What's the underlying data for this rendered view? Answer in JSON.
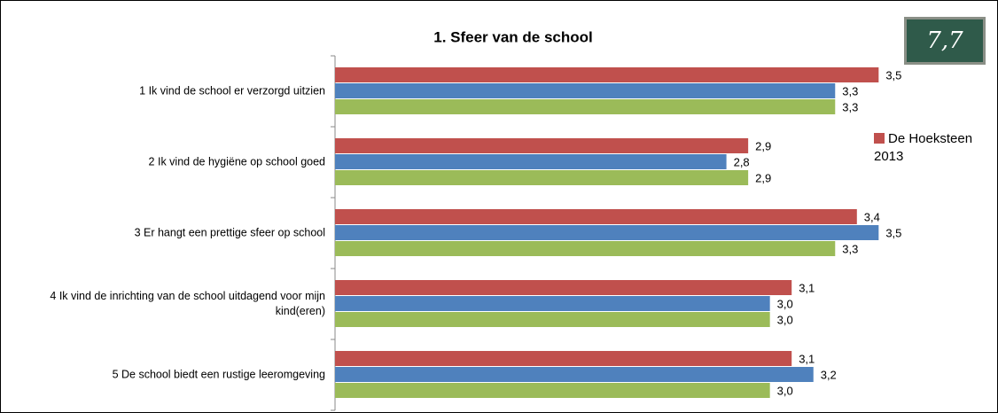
{
  "chart_data": {
    "type": "hbar",
    "title": "1. Sfeer van de school",
    "categories": [
      "1 Ik vind de school er verzorgd uitzien",
      "2 Ik vind de hygiëne op school goed",
      "3 Er hangt een prettige sfeer op school",
      "4 Ik vind de inrichting van de school uitdagend voor mijn kind(eren)",
      "5 De school biedt een rustige leeromgeving"
    ],
    "series": [
      {
        "name": "De Hoeksteen 2013",
        "color": "#c0504d",
        "values": [
          3.5,
          2.9,
          3.4,
          3.1,
          3.1
        ],
        "value_labels": [
          "3,5",
          "2,9",
          "3,4",
          "3,1",
          "3,1"
        ]
      },
      {
        "color": "#4f81bd",
        "values": [
          3.3,
          2.8,
          3.5,
          3.0,
          3.2
        ],
        "value_labels": [
          "3,3",
          "2,8",
          "3,5",
          "3,0",
          "3,2"
        ]
      },
      {
        "color": "#9bbb59",
        "values": [
          3.3,
          2.9,
          3.3,
          3.0,
          3.0
        ],
        "value_labels": [
          "3,3",
          "2,9",
          "3,3",
          "3,0",
          "3,0"
        ]
      }
    ],
    "xlim": [
      1,
      4
    ],
    "legend": "right"
  },
  "badge": "7,7"
}
